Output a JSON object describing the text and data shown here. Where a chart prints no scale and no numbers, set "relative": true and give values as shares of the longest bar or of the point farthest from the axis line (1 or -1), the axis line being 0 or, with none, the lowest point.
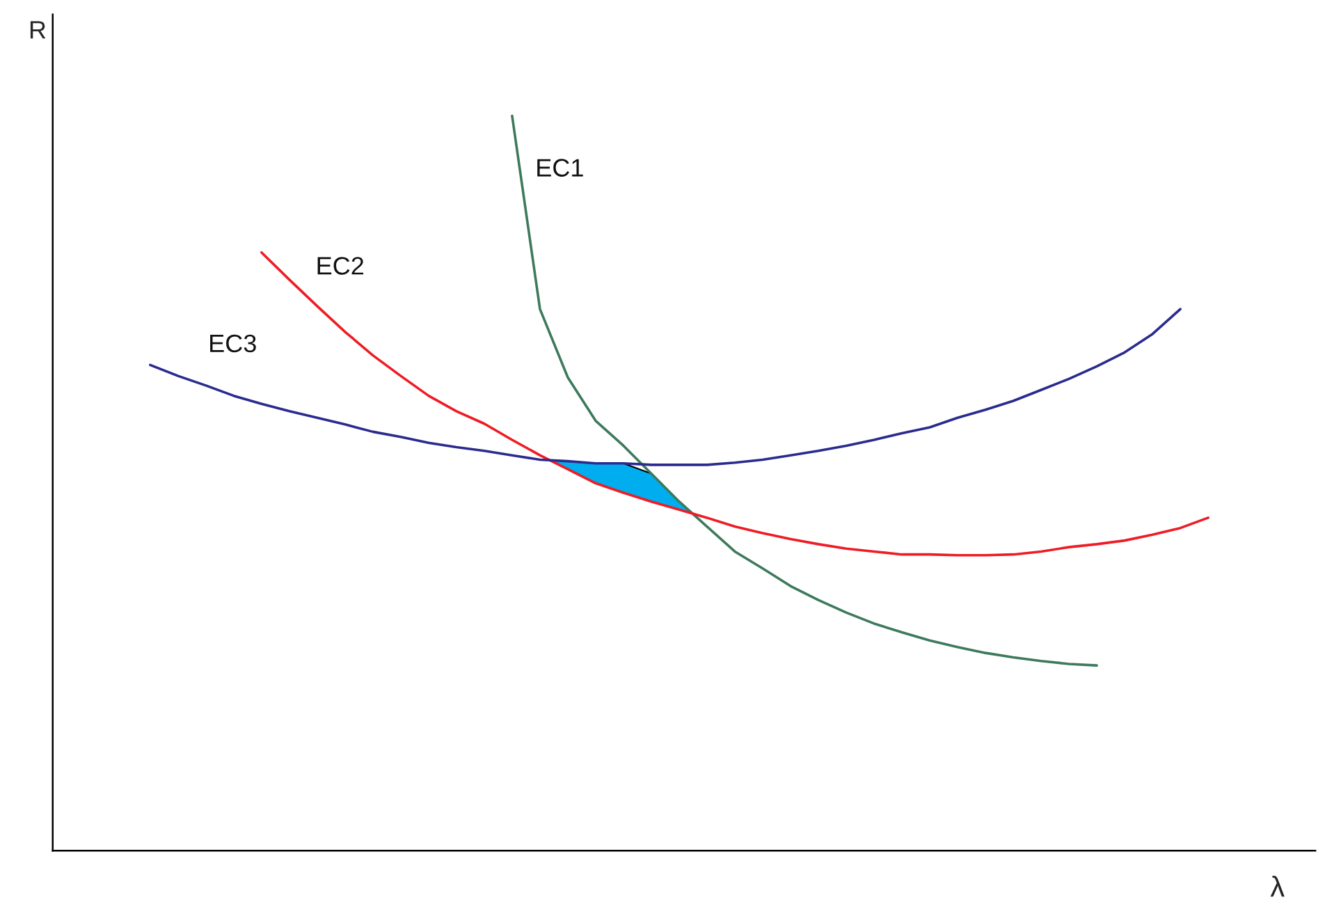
{
  "chart_data": {
    "type": "line",
    "relative": true,
    "xlabel": "λ",
    "ylabel": "R",
    "legend": false,
    "marker": "none",
    "line_style": "solid",
    "categories": [
      null,
      null,
      null,
      null,
      null,
      null,
      null,
      null,
      null,
      null,
      null,
      null,
      null,
      null,
      null,
      null,
      null,
      null,
      null,
      null,
      null,
      null,
      null,
      null,
      null,
      null,
      null,
      null,
      null,
      null,
      null,
      null,
      null,
      null,
      null,
      null,
      null,
      null,
      null,
      null
    ],
    "series": [
      {
        "name": "EC1",
        "color": "#3d7a5c",
        "values": [
          null,
          null,
          null,
          null,
          null,
          null,
          null,
          null,
          null,
          null,
          null,
          null,
          null,
          1.0,
          0.737,
          0.644,
          0.585,
          0.551,
          0.513,
          0.475,
          0.441,
          0.407,
          0.384,
          0.36,
          0.341,
          0.324,
          0.309,
          0.297,
          0.286,
          0.277,
          0.269,
          0.263,
          0.258,
          0.254,
          0.252,
          null,
          null,
          null,
          null,
          null
        ]
      },
      {
        "name": "EC2",
        "color": "#ee1c24",
        "values": [
          null,
          null,
          null,
          null,
          0.814,
          0.777,
          0.741,
          0.706,
          0.674,
          0.646,
          0.619,
          0.598,
          0.581,
          0.559,
          0.538,
          0.519,
          0.5,
          0.487,
          0.475,
          0.464,
          0.453,
          0.441,
          0.432,
          0.424,
          0.417,
          0.411,
          0.407,
          0.403,
          0.403,
          0.402,
          0.402,
          0.403,
          0.407,
          0.413,
          0.417,
          0.422,
          0.43,
          0.439,
          0.453,
          null
        ]
      },
      {
        "name": "EC3",
        "color": "#2b2b8f",
        "values": [
          0.661,
          0.646,
          0.633,
          0.619,
          0.608,
          0.598,
          0.589,
          0.58,
          0.57,
          0.563,
          0.555,
          0.549,
          0.544,
          0.538,
          0.532,
          0.53,
          0.527,
          0.527,
          0.525,
          0.525,
          0.525,
          0.528,
          0.532,
          0.538,
          0.544,
          0.551,
          0.559,
          0.568,
          0.576,
          0.589,
          0.6,
          0.612,
          0.627,
          0.642,
          0.659,
          0.678,
          0.703,
          0.737,
          null,
          null
        ]
      }
    ]
  }
}
